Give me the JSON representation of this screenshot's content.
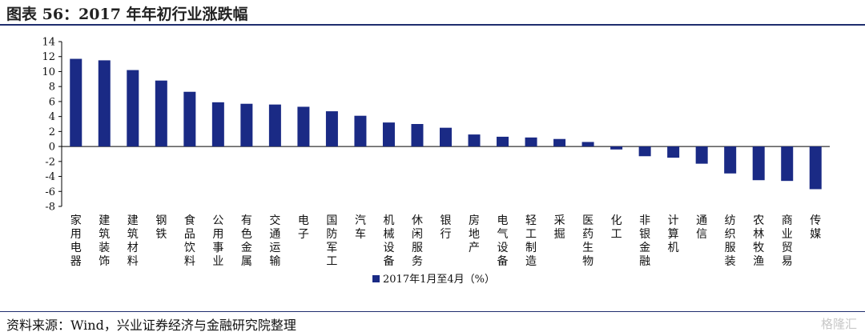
{
  "header": {
    "title": "图表 56：2017 年年初行业涨跌幅"
  },
  "footer": {
    "source": "资料来源：Wind，兴业证券经济与金融研究院整理",
    "watermark": "格隆汇"
  },
  "chart_data": {
    "type": "bar",
    "color": "#1a2a85",
    "ylim": [
      -8,
      14
    ],
    "yticks": [
      -8,
      -6,
      -4,
      -2,
      0,
      2,
      4,
      6,
      8,
      10,
      12,
      14
    ],
    "legend_position": "bottom",
    "categories": [
      "家用电器",
      "建筑装饰",
      "建筑材料",
      "钢铁",
      "食品饮料",
      "公用事业",
      "有色金属",
      "交通运输",
      "电子",
      "国防军工",
      "汽车",
      "机械设备",
      "休闲服务",
      "银行",
      "房地产",
      "电气设备",
      "轻工制造",
      "采掘",
      "医药生物",
      "化工",
      "非银金融",
      "计算机",
      "通信",
      "纺织服装",
      "农林牧渔",
      "商业贸易",
      "传媒"
    ],
    "series": [
      {
        "name": "2017年1月至4月（%）",
        "values": [
          11.7,
          11.5,
          10.2,
          8.8,
          7.3,
          5.9,
          5.7,
          5.6,
          5.3,
          4.7,
          4.1,
          3.2,
          3.0,
          2.5,
          1.6,
          1.3,
          1.2,
          1.0,
          0.6,
          -0.4,
          -1.3,
          -1.5,
          -2.3,
          -3.6,
          -4.5,
          -4.6,
          -5.7
        ]
      }
    ]
  }
}
